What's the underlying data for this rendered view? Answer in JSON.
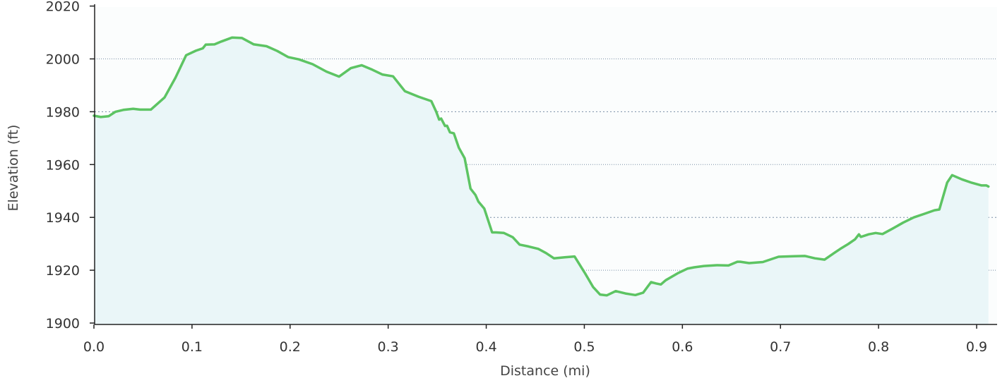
{
  "chart_data": {
    "type": "area",
    "title": "",
    "xlabel": "Distance   (mi)",
    "ylabel": "Elevation (ft)",
    "xlim": [
      0.0,
      0.92
    ],
    "ylim": [
      1900,
      2020
    ],
    "x_ticks": [
      0.0,
      0.1,
      0.2,
      0.3,
      0.4,
      0.5,
      0.6,
      0.7,
      0.8,
      0.9
    ],
    "x_tick_labels": [
      "0.0",
      "0.1",
      "0.2",
      "0.3",
      "0.4",
      "0.5",
      "0.6",
      "0.7",
      "0.8",
      "0.9"
    ],
    "y_ticks": [
      1900,
      1920,
      1940,
      1960,
      1980,
      2000,
      2020
    ],
    "y_tick_labels": [
      "1900",
      "1920",
      "1940",
      "1960",
      "1980",
      "2000",
      "2020"
    ],
    "grid": true,
    "legend": "none",
    "colors": {
      "line": "#5dc463",
      "fill": "#eaf6f8",
      "grid": "#7a8fa6",
      "axis": "#222222"
    },
    "series": [
      {
        "x": [
          0.0,
          0.007,
          0.015,
          0.022,
          0.03,
          0.04,
          0.047,
          0.058,
          0.072,
          0.083,
          0.094,
          0.104,
          0.111,
          0.114,
          0.123,
          0.13,
          0.141,
          0.151,
          0.163,
          0.176,
          0.187,
          0.198,
          0.209,
          0.223,
          0.237,
          0.25,
          0.262,
          0.273,
          0.284,
          0.294,
          0.305,
          0.317,
          0.331,
          0.344,
          0.349,
          0.352,
          0.354,
          0.358,
          0.36,
          0.363,
          0.367,
          0.372,
          0.378,
          0.384,
          0.389,
          0.392,
          0.398,
          0.406,
          0.41,
          0.418,
          0.427,
          0.434,
          0.443,
          0.453,
          0.461,
          0.469,
          0.48,
          0.49,
          0.501,
          0.509,
          0.516,
          0.523,
          0.532,
          0.542,
          0.552,
          0.56,
          0.568,
          0.573,
          0.578,
          0.583,
          0.595,
          0.605,
          0.612,
          0.622,
          0.635,
          0.647,
          0.656,
          0.659,
          0.668,
          0.682,
          0.698,
          0.714,
          0.725,
          0.735,
          0.745,
          0.755,
          0.761,
          0.769,
          0.776,
          0.78,
          0.782,
          0.79,
          0.797,
          0.804,
          0.814,
          0.825,
          0.836,
          0.847,
          0.857,
          0.862,
          0.87,
          0.875,
          0.885,
          0.895,
          0.905,
          0.91,
          0.912
        ],
        "y": [
          1978.5,
          1978,
          1978.3,
          1980,
          1980.7,
          1981.1,
          1980.8,
          1980.8,
          1985.4,
          1992.8,
          2001.4,
          2003.1,
          2004,
          2005.4,
          2005.5,
          2006.6,
          2008.1,
          2007.9,
          2005.5,
          2004.8,
          2003,
          2000.7,
          1999.8,
          1998,
          1995.2,
          1993.3,
          1996.5,
          1997.6,
          1995.9,
          1994.1,
          1993.4,
          1987.8,
          1985.7,
          1984,
          1980,
          1977,
          1977.4,
          1974.6,
          1974.7,
          1972.2,
          1971.8,
          1966.4,
          1962.4,
          1950.9,
          1948.5,
          1946,
          1943.3,
          1934.3,
          1934.3,
          1934.1,
          1932.5,
          1929.7,
          1929,
          1928.1,
          1926.5,
          1924.5,
          1924.9,
          1925.2,
          1918.7,
          1913.6,
          1910.8,
          1910.5,
          1912.1,
          1911.2,
          1910.6,
          1911.5,
          1915.5,
          1915,
          1914.6,
          1916.2,
          1918.8,
          1920.6,
          1921.1,
          1921.6,
          1921.9,
          1921.8,
          1923.2,
          1923.2,
          1922.7,
          1923.1,
          1925.1,
          1925.3,
          1925.4,
          1924.5,
          1924,
          1926.6,
          1928.1,
          1929.9,
          1931.7,
          1933.6,
          1932.6,
          1933.6,
          1934.1,
          1933.7,
          1935.7,
          1938,
          1940,
          1941.4,
          1942.7,
          1943,
          1953.2,
          1956,
          1954.4,
          1953.1,
          1952.1,
          1952.1,
          1951.7
        ]
      }
    ]
  }
}
